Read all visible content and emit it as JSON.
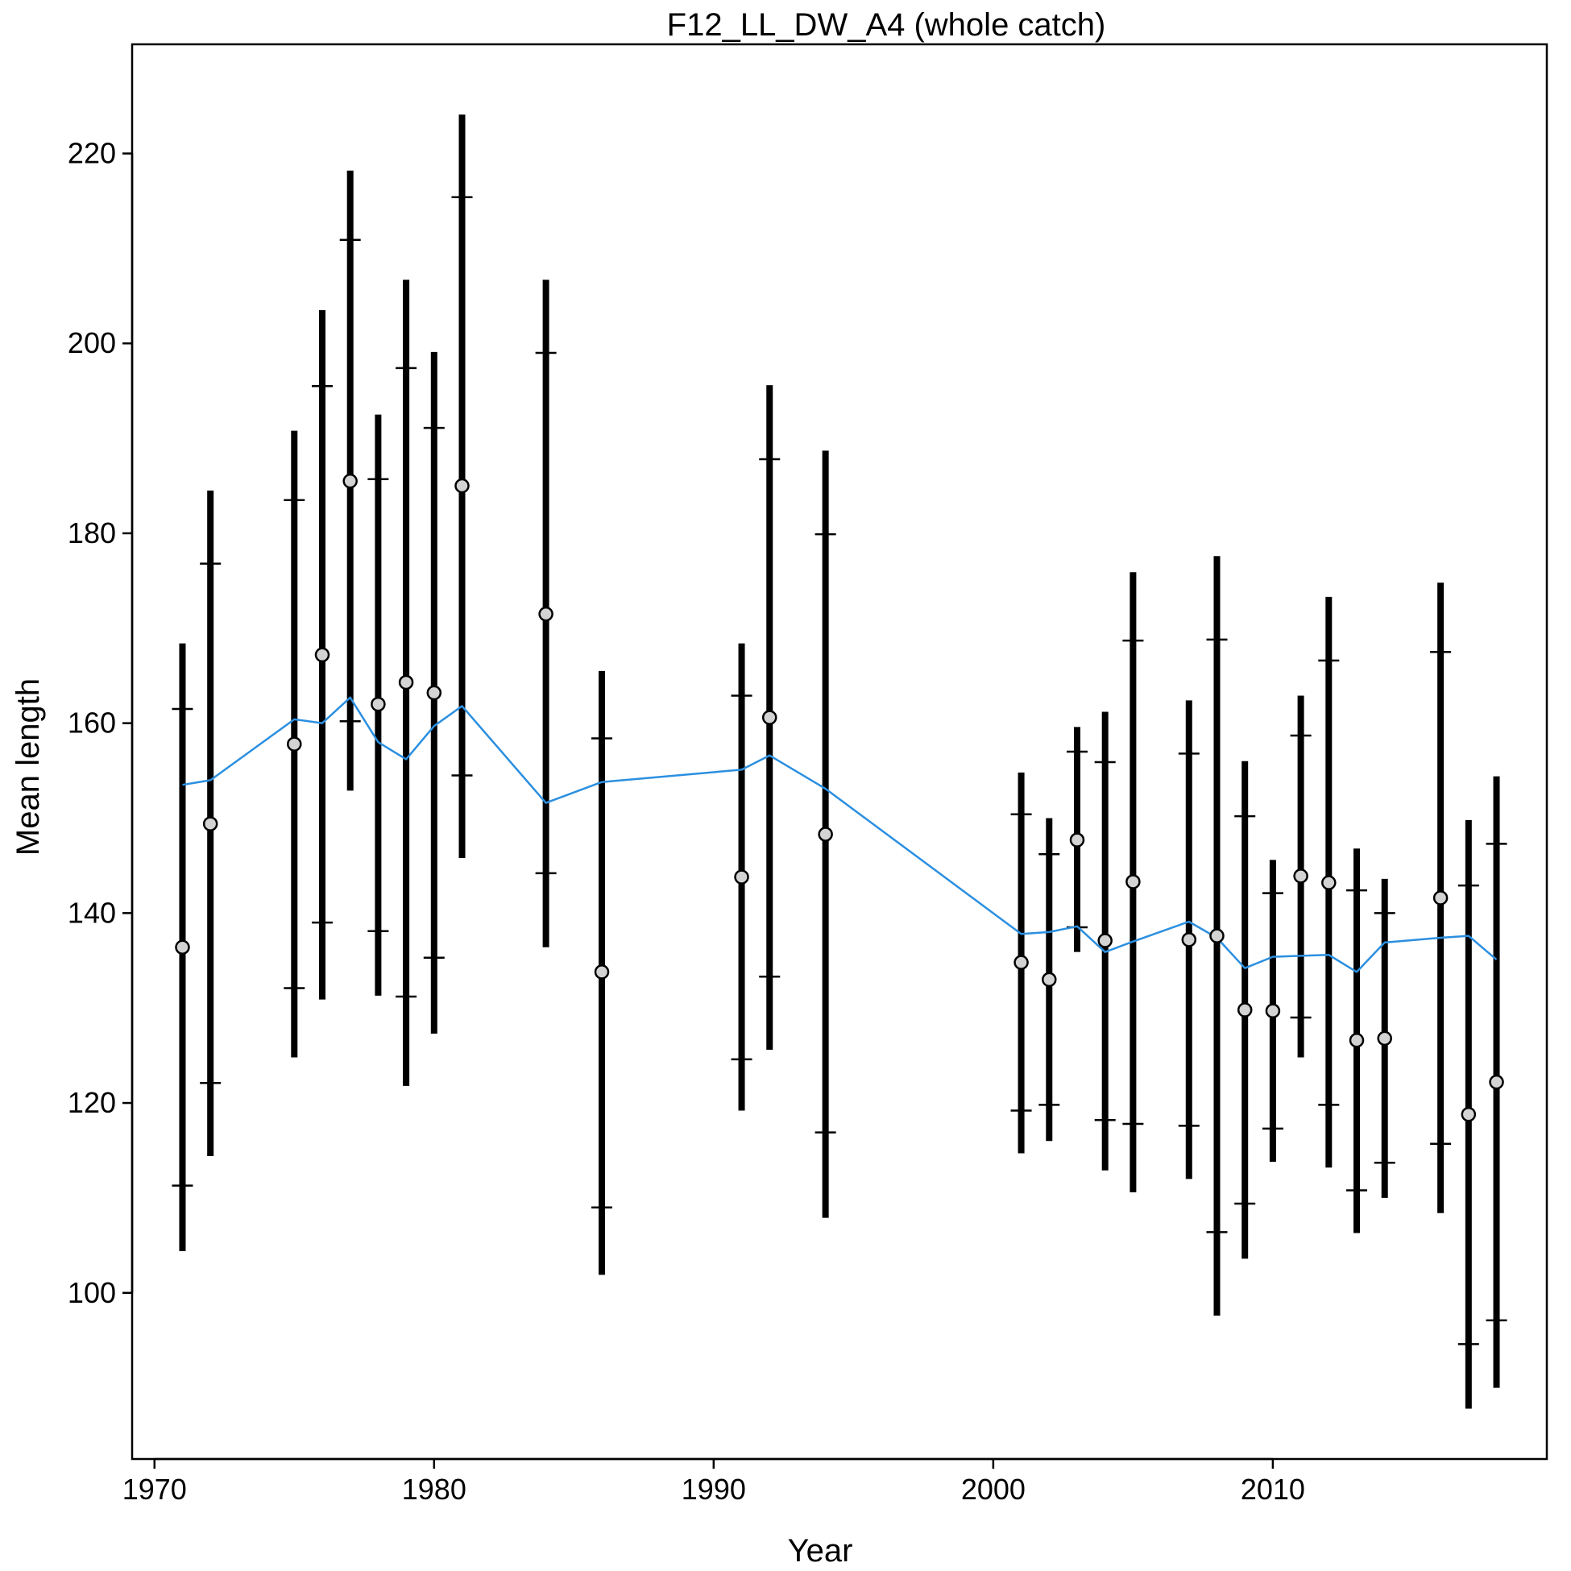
{
  "chart_data": {
    "type": "scatter",
    "title": "F12_LL_DW_A4 (whole catch)",
    "xlabel": "Year",
    "ylabel": "Mean length",
    "xlim": [
      1969.2,
      2019.8
    ],
    "ylim": [
      82.5,
      231.5
    ],
    "x_ticks": [
      1970,
      1980,
      1990,
      2000,
      2010
    ],
    "y_ticks": [
      100,
      120,
      140,
      160,
      180,
      200,
      220
    ],
    "grid": false,
    "legend": "none",
    "colors": {
      "observed_bar": "#000000",
      "observed_point": "#d3d3d3",
      "expected_line": "#2b8fe0"
    },
    "series": [
      {
        "kind": "observed",
        "points": [
          {
            "x": 1971,
            "y": 136.4,
            "lo": 104.4,
            "hi": 168.4,
            "ilo": 111.3,
            "ihi": 161.5
          },
          {
            "x": 1972,
            "y": 149.4,
            "lo": 114.4,
            "hi": 184.5,
            "ilo": 122.1,
            "ihi": 176.8
          },
          {
            "x": 1975,
            "y": 157.8,
            "lo": 124.8,
            "hi": 190.8,
            "ilo": 132.1,
            "ihi": 183.5
          },
          {
            "x": 1976,
            "y": 167.2,
            "lo": 130.9,
            "hi": 203.5,
            "ilo": 139.0,
            "ihi": 195.5
          },
          {
            "x": 1977,
            "y": 185.5,
            "lo": 152.9,
            "hi": 218.2,
            "ilo": 160.2,
            "ihi": 210.9
          },
          {
            "x": 1978,
            "y": 162.0,
            "lo": 131.3,
            "hi": 192.5,
            "ilo": 138.1,
            "ihi": 185.7
          },
          {
            "x": 1979,
            "y": 164.3,
            "lo": 121.8,
            "hi": 206.7,
            "ilo": 131.2,
            "ihi": 197.4
          },
          {
            "x": 1980,
            "y": 163.2,
            "lo": 127.3,
            "hi": 199.1,
            "ilo": 135.3,
            "ihi": 191.1
          },
          {
            "x": 1981,
            "y": 185.0,
            "lo": 145.8,
            "hi": 224.1,
            "ilo": 154.5,
            "ihi": 215.4
          },
          {
            "x": 1984,
            "y": 171.5,
            "lo": 136.4,
            "hi": 206.7,
            "ilo": 144.2,
            "ihi": 199.0
          },
          {
            "x": 1986,
            "y": 133.8,
            "lo": 101.9,
            "hi": 165.5,
            "ilo": 109.0,
            "ihi": 158.4
          },
          {
            "x": 1991,
            "y": 143.8,
            "lo": 119.2,
            "hi": 168.4,
            "ilo": 124.6,
            "ihi": 162.9
          },
          {
            "x": 1992,
            "y": 160.6,
            "lo": 125.6,
            "hi": 195.6,
            "ilo": 133.3,
            "ihi": 187.8
          },
          {
            "x": 1994,
            "y": 148.3,
            "lo": 107.9,
            "hi": 188.7,
            "ilo": 116.9,
            "ihi": 179.9
          },
          {
            "x": 2001,
            "y": 134.8,
            "lo": 114.7,
            "hi": 154.8,
            "ilo": 119.2,
            "ihi": 150.4
          },
          {
            "x": 2002,
            "y": 133.0,
            "lo": 116.0,
            "hi": 150.0,
            "ilo": 119.8,
            "ihi": 146.2
          },
          {
            "x": 2003,
            "y": 147.7,
            "lo": 135.9,
            "hi": 159.6,
            "ilo": 138.5,
            "ihi": 157.0
          },
          {
            "x": 2004,
            "y": 137.1,
            "lo": 112.9,
            "hi": 161.2,
            "ilo": 118.2,
            "ihi": 155.9
          },
          {
            "x": 2005,
            "y": 143.3,
            "lo": 110.6,
            "hi": 175.9,
            "ilo": 117.8,
            "ihi": 168.7
          },
          {
            "x": 2007,
            "y": 137.2,
            "lo": 112.0,
            "hi": 162.4,
            "ilo": 117.6,
            "ihi": 156.8
          },
          {
            "x": 2008,
            "y": 137.6,
            "lo": 97.6,
            "hi": 177.6,
            "ilo": 106.4,
            "ihi": 168.8
          },
          {
            "x": 2009,
            "y": 129.8,
            "lo": 103.6,
            "hi": 156.0,
            "ilo": 109.4,
            "ihi": 150.2
          },
          {
            "x": 2010,
            "y": 129.7,
            "lo": 113.8,
            "hi": 145.6,
            "ilo": 117.3,
            "ihi": 142.1
          },
          {
            "x": 2011,
            "y": 143.9,
            "lo": 124.8,
            "hi": 162.9,
            "ilo": 129.0,
            "ihi": 158.7
          },
          {
            "x": 2012,
            "y": 143.2,
            "lo": 113.2,
            "hi": 173.3,
            "ilo": 119.8,
            "ihi": 166.6
          },
          {
            "x": 2013,
            "y": 126.6,
            "lo": 106.3,
            "hi": 146.8,
            "ilo": 110.8,
            "ihi": 142.4
          },
          {
            "x": 2014,
            "y": 126.8,
            "lo": 110.0,
            "hi": 143.6,
            "ilo": 113.7,
            "ihi": 140.0
          },
          {
            "x": 2016,
            "y": 141.6,
            "lo": 108.4,
            "hi": 174.8,
            "ilo": 115.7,
            "ihi": 167.5
          },
          {
            "x": 2017,
            "y": 118.8,
            "lo": 87.8,
            "hi": 149.8,
            "ilo": 94.6,
            "ihi": 142.9
          },
          {
            "x": 2018,
            "y": 122.2,
            "lo": 90.0,
            "hi": 154.4,
            "ilo": 97.1,
            "ihi": 147.3
          }
        ]
      },
      {
        "kind": "expected",
        "x": [
          1971,
          1972,
          1975,
          1976,
          1977,
          1978,
          1979,
          1980,
          1981,
          1984,
          1986,
          1991,
          1992,
          1994,
          2001,
          2002,
          2003,
          2004,
          2005,
          2007,
          2008,
          2009,
          2010,
          2011,
          2012,
          2013,
          2014,
          2016,
          2017,
          2018
        ],
        "values": [
          153.5,
          154.0,
          160.4,
          160.0,
          162.7,
          158.0,
          156.2,
          159.7,
          161.8,
          151.6,
          153.8,
          155.1,
          156.6,
          153.1,
          137.8,
          138.0,
          138.6,
          135.9,
          137.0,
          139.1,
          137.4,
          134.2,
          135.4,
          135.5,
          135.6,
          133.8,
          136.9,
          137.4,
          137.6,
          135.1
        ]
      }
    ]
  }
}
